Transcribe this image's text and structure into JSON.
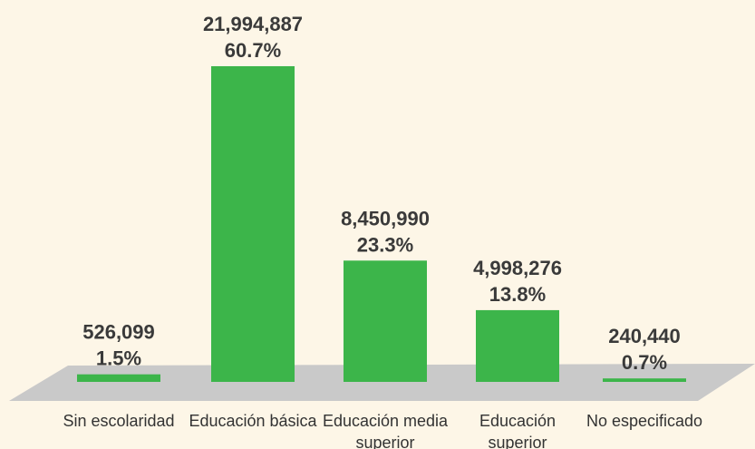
{
  "chart_data": {
    "type": "bar",
    "categories": [
      "Sin escolaridad",
      "Educación básica",
      "Educación media superior",
      "Educación superior",
      "No especificado"
    ],
    "values": [
      526099,
      21994887,
      8450990,
      4998276,
      240440
    ],
    "value_labels": [
      "526,099",
      "21,994,887",
      "8,450,990",
      "4,998,276",
      "240,440"
    ],
    "percents": [
      1.5,
      60.7,
      23.3,
      13.8,
      0.7
    ],
    "percent_labels": [
      "1.5%",
      "60.7%",
      "23.3%",
      "13.8%",
      "0.7%"
    ],
    "color": "#3cb54a"
  }
}
